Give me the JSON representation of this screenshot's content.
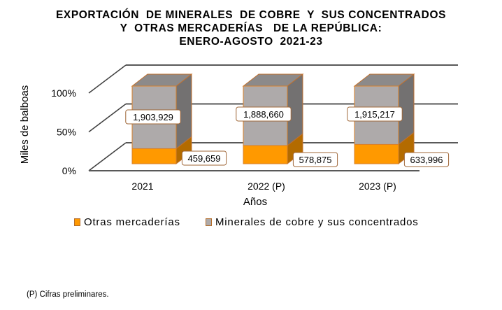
{
  "chart_data": {
    "type": "bar",
    "subtype": "stacked-100-percent-3d",
    "title": [
      "EXPORTACIÓN  DE MINERALES  DE COBRE  Y  SUS CONCENTRADOS",
      "Y  OTRAS MERCADERÍAS   DE LA REPÚBLICA:",
      "ENERO-AGOSTO  2021-23"
    ],
    "xlabel": "Años",
    "ylabel": "Miles de balboas",
    "categories": [
      "2021",
      "2022 (P)",
      "2023 (P)"
    ],
    "y_ticks": [
      "0%",
      "50%",
      "100%"
    ],
    "ylim": [
      0,
      100
    ],
    "grid": true,
    "legend_position": "bottom",
    "series": [
      {
        "name": "Otras mercaderías",
        "values": [
          459659,
          578875,
          633996
        ],
        "labels": [
          "459,659",
          "578,875",
          "633,996"
        ],
        "color": "#ff9900",
        "side_color": "#b36b00"
      },
      {
        "name": "Minerales de cobre y sus concentrados",
        "values": [
          1903929,
          1888660,
          1915217
        ],
        "labels": [
          "1,903,929",
          "1,888,660",
          "1,915,217"
        ],
        "color": "#aeaaaa",
        "side_color": "#737171"
      }
    ]
  },
  "legend": {
    "items": [
      "Otras mercaderías",
      "Minerales de cobre y sus concentrados"
    ]
  },
  "footnote": "(P) Cifras preliminares."
}
